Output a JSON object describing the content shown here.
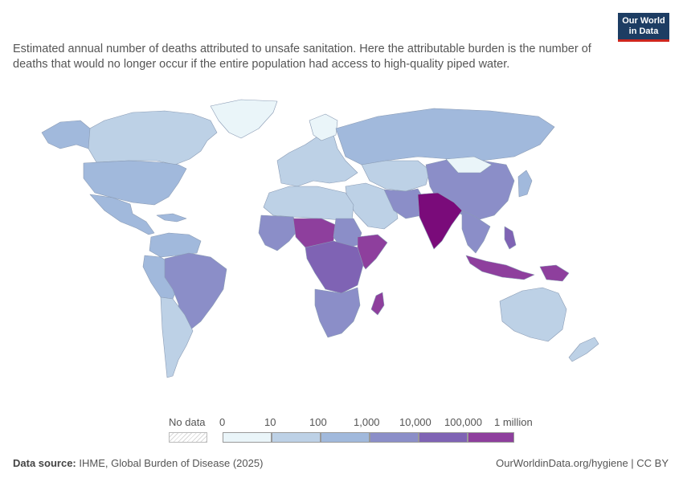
{
  "header": {
    "subtitle": "Estimated annual number of deaths attributed to unsafe sanitation. Here the attributable burden is the number of deaths that would no longer occur if the entire population had access to high-quality piped water.",
    "logo_line1": "Our World",
    "logo_line2": "in Data"
  },
  "legend": {
    "no_data_label": "No data",
    "bins": [
      {
        "label": "0",
        "color": "#eaf5f9"
      },
      {
        "label": "10",
        "color": "#bdd1e6"
      },
      {
        "label": "100",
        "color": "#a1b9dc"
      },
      {
        "label": "1,000",
        "color": "#8b8ec8"
      },
      {
        "label": "10,000",
        "color": "#7f63b4"
      },
      {
        "label": "100,000",
        "color": "#8e3f9d"
      },
      {
        "label": "1 million",
        "color": "#7a0b7a"
      }
    ]
  },
  "footer": {
    "source_label": "Data source:",
    "source_text": "IHME, Global Burden of Disease (2025)",
    "url_text": "OurWorldinData.org/hygiene | CC BY"
  },
  "map_colors": {
    "very_low": "#eaf5f9",
    "low": "#bdd1e6",
    "mid_low": "#a1b9dc",
    "mid": "#8b8ec8",
    "high": "#7f63b4",
    "very_high": "#8e3f9d",
    "extreme": "#7a0b7a",
    "border": "#8a9bb4"
  }
}
